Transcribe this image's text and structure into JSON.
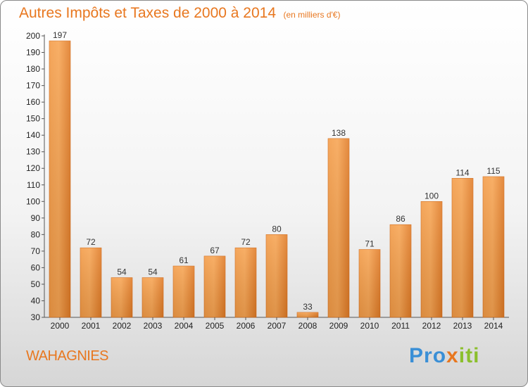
{
  "title": "Autres Impôts et Taxes de 2000 à 2014",
  "unit": "(en milliers d'€)",
  "commune": "WAHAGNIES",
  "logo": {
    "letters": [
      "P",
      "r",
      "o",
      "x",
      "i",
      "t",
      "i"
    ],
    "colors": [
      "#3a8fd6",
      "#3a8fd6",
      "#3a8fd6",
      "#e8771f",
      "#8bbf2c",
      "#8bbf2c",
      "#8bbf2c"
    ]
  },
  "colors": {
    "accent": "#e8771f",
    "bar_light": "#f7a452",
    "bar_dark": "#e07a25"
  },
  "chart_data": {
    "type": "bar",
    "title": "Autres Impôts et Taxes de 2000 à 2014",
    "categories": [
      "2000",
      "2001",
      "2002",
      "2003",
      "2004",
      "2005",
      "2006",
      "2007",
      "2008",
      "2009",
      "2010",
      "2011",
      "2012",
      "2013",
      "2014"
    ],
    "values": [
      197,
      72,
      54,
      54,
      61,
      67,
      72,
      80,
      33,
      138,
      71,
      86,
      100,
      114,
      115
    ],
    "data_labels": [
      "197",
      "72",
      "54",
      "54",
      "61",
      "67",
      "72",
      "80",
      "33",
      "138",
      "71",
      "86",
      "100",
      "114",
      "115"
    ],
    "ylim": [
      30,
      200
    ],
    "yticks": [
      30,
      40,
      50,
      60,
      70,
      80,
      90,
      100,
      110,
      120,
      130,
      140,
      150,
      160,
      170,
      180,
      190,
      200
    ],
    "grid": false,
    "xlabel": "",
    "ylabel": ""
  }
}
